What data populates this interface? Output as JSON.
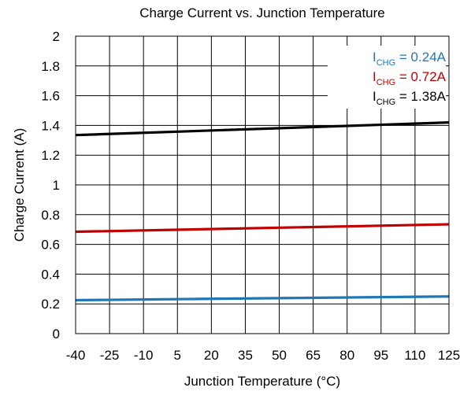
{
  "chart_data": {
    "type": "line",
    "title": "Charge Current vs. Junction Temperature",
    "xlabel": "Junction Temperature (°C)",
    "ylabel": "Charge Current (A)",
    "xlim": [
      -40,
      125
    ],
    "ylim": [
      0,
      2
    ],
    "x_ticks": [
      -40,
      -25,
      -10,
      5,
      20,
      35,
      50,
      65,
      80,
      95,
      110,
      125
    ],
    "x_tick_labels": [
      "-40",
      "-25",
      "-10",
      "5",
      "20",
      "35",
      "50",
      "65",
      "80",
      "95",
      "110",
      "125"
    ],
    "y_ticks": [
      0,
      0.2,
      0.4,
      0.6,
      0.8,
      1,
      1.2,
      1.4,
      1.6,
      1.8,
      2
    ],
    "y_tick_labels": [
      "0",
      "0.2",
      "0.4",
      "0.6",
      "0.8",
      "1",
      "1.2",
      "1.4",
      "1.6",
      "1.8",
      "2"
    ],
    "grid": true,
    "legend_position": "top-right",
    "series": [
      {
        "name_main": "I",
        "name_sub": "CHG",
        "name_rest": " = 0.24A",
        "color": "#1f77b4",
        "x": [
          -40,
          125
        ],
        "y": [
          0.225,
          0.25
        ]
      },
      {
        "name_main": "I",
        "name_sub": "CHG",
        "name_rest": " = 0.72A",
        "color": "#c00000",
        "x": [
          -40,
          125
        ],
        "y": [
          0.685,
          0.735
        ]
      },
      {
        "name_main": "I",
        "name_sub": "CHG",
        "name_rest": " = 1.38A",
        "color": "#000000",
        "x": [
          -40,
          125
        ],
        "y": [
          1.335,
          1.42
        ]
      }
    ]
  }
}
